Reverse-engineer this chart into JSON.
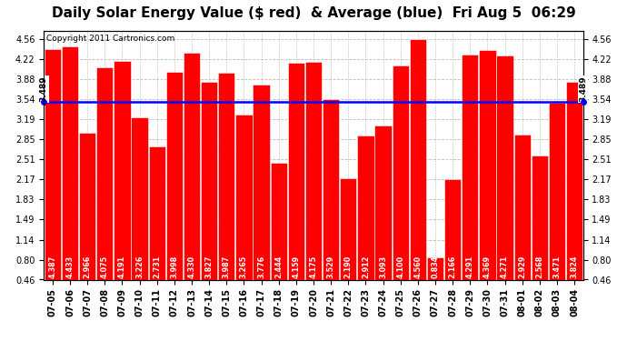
{
  "title": "Daily Solar Energy Value ($ red)  & Average (blue)  Fri Aug 5  06:29",
  "copyright": "Copyright 2011 Cartronics.com",
  "average_label": "3.489",
  "average_value": 3.489,
  "bar_color": "#FF0000",
  "avg_line_color": "#0000FF",
  "background_color": "#FFFFFF",
  "plot_bg_color": "#FFFFFF",
  "grid_color": "#BBBBBB",
  "yticks": [
    0.46,
    0.8,
    1.14,
    1.49,
    1.83,
    2.17,
    2.51,
    2.85,
    3.19,
    3.54,
    3.88,
    4.22,
    4.56
  ],
  "categories": [
    "07-05",
    "07-06",
    "07-07",
    "07-08",
    "07-09",
    "07-10",
    "07-11",
    "07-12",
    "07-13",
    "07-14",
    "07-15",
    "07-16",
    "07-17",
    "07-18",
    "07-19",
    "07-20",
    "07-21",
    "07-22",
    "07-23",
    "07-24",
    "07-25",
    "07-26",
    "07-27",
    "07-28",
    "07-29",
    "07-30",
    "07-31",
    "08-01",
    "08-02",
    "08-03",
    "08-04"
  ],
  "values": [
    4.387,
    4.433,
    2.966,
    4.075,
    4.191,
    3.226,
    2.731,
    3.998,
    4.33,
    3.827,
    3.987,
    3.265,
    3.776,
    2.444,
    4.159,
    4.175,
    3.529,
    2.19,
    2.912,
    3.093,
    4.1,
    4.56,
    0.834,
    2.166,
    4.291,
    4.369,
    4.271,
    2.929,
    2.568,
    3.471,
    3.824
  ],
  "ylim_min": 0.46,
  "ylim_max": 4.7,
  "title_fontsize": 11,
  "tick_fontsize": 7,
  "bar_value_fontsize": 5.8,
  "avg_label_fontsize": 6.5,
  "copyright_fontsize": 6.5
}
